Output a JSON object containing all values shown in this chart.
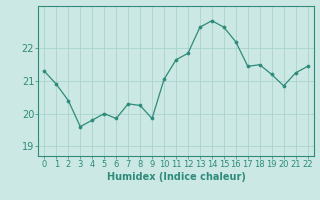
{
  "x": [
    0,
    1,
    2,
    3,
    4,
    5,
    6,
    7,
    8,
    9,
    10,
    11,
    12,
    13,
    14,
    15,
    16,
    17,
    18,
    19,
    20,
    21,
    22
  ],
  "y": [
    21.3,
    20.9,
    20.4,
    19.6,
    19.8,
    20.0,
    19.85,
    20.3,
    20.25,
    19.85,
    21.05,
    21.65,
    21.85,
    22.65,
    22.85,
    22.65,
    22.2,
    21.45,
    21.5,
    21.2,
    20.85,
    21.25,
    21.45
  ],
  "line_color": "#2e8b7a",
  "marker_color": "#2e8b7a",
  "bg_color": "#cce8e4",
  "grid_color": "#aad4cf",
  "xlabel": "Humidex (Indice chaleur)",
  "xlabel_fontsize": 7,
  "ytick_labels": [
    "19",
    "20",
    "21",
    "22"
  ],
  "yticks": [
    19,
    20,
    21,
    22
  ],
  "xticks": [
    0,
    1,
    2,
    3,
    4,
    5,
    6,
    7,
    8,
    9,
    10,
    11,
    12,
    13,
    14,
    15,
    16,
    17,
    18,
    19,
    20,
    21,
    22
  ],
  "ylim": [
    18.7,
    23.3
  ],
  "xlim": [
    -0.5,
    22.5
  ],
  "tick_fontsize": 6,
  "axis_color": "#2e8b7a"
}
